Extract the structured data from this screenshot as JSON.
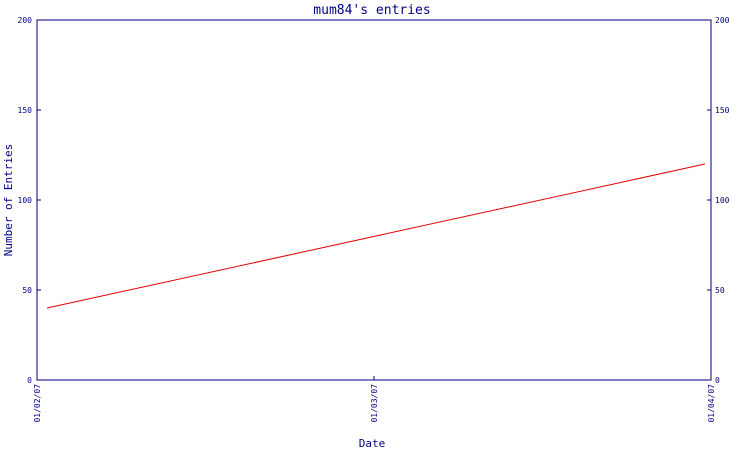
{
  "chart_data": {
    "type": "line",
    "title": "mum84's entries",
    "xlabel": "Date",
    "ylabel": "Number of Entries",
    "x": [
      "01/02/07",
      "01/03/07",
      "01/04/07"
    ],
    "series": [
      {
        "values": [
          40,
          80,
          120
        ]
      }
    ],
    "ylim": [
      0,
      200
    ],
    "yticks": [
      0,
      50,
      100,
      150,
      200
    ],
    "xticks": [
      "01/02/07",
      "01/03/07",
      "01/04/07"
    ],
    "grid": false,
    "right_axis": true
  },
  "colors": {
    "axis": "#000080",
    "title": "#000080",
    "line": "#e00000",
    "background": "#ffffff"
  }
}
